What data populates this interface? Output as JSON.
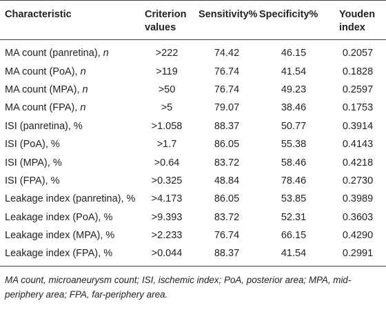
{
  "table": {
    "headers": [
      "Characteristic",
      "Criterion values",
      "Sensitivity%",
      "Specificity%",
      "Youden index"
    ],
    "rows": [
      {
        "label": "MA count (panretina), ",
        "label_italic": "n",
        "criterion": ">222",
        "sensitivity": "74.42",
        "specificity": "46.15",
        "youden": "0.2057"
      },
      {
        "label": "MA count (PoA), ",
        "label_italic": "n",
        "criterion": ">119",
        "sensitivity": "76.74",
        "specificity": "41.54",
        "youden": "0.1828"
      },
      {
        "label": "MA count (MPA), ",
        "label_italic": "n",
        "criterion": ">50",
        "sensitivity": "76.74",
        "specificity": "49.23",
        "youden": "0.2597"
      },
      {
        "label": "MA count (FPA), ",
        "label_italic": "n",
        "criterion": ">5",
        "sensitivity": "79.07",
        "specificity": "38.46",
        "youden": "0.1753"
      },
      {
        "label": "ISI (panretina), %",
        "label_italic": "",
        "criterion": ">1.058",
        "sensitivity": "88.37",
        "specificity": "50.77",
        "youden": "0.3914"
      },
      {
        "label": "ISI (PoA), %",
        "label_italic": "",
        "criterion": ">1.7",
        "sensitivity": "86.05",
        "specificity": "55.38",
        "youden": "0.4143"
      },
      {
        "label": "ISI (MPA), %",
        "label_italic": "",
        "criterion": ">0.64",
        "sensitivity": "83.72",
        "specificity": "58.46",
        "youden": "0.4218"
      },
      {
        "label": "ISI (FPA), %",
        "label_italic": "",
        "criterion": ">0.325",
        "sensitivity": "48.84",
        "specificity": "78.46",
        "youden": "0.2730"
      },
      {
        "label": "Leakage index (panretina), %",
        "label_italic": "",
        "criterion": ">4.173",
        "sensitivity": "86.05",
        "specificity": "53.85",
        "youden": "0.3989"
      },
      {
        "label": "Leakage index (PoA), %",
        "label_italic": "",
        "criterion": ">9.393",
        "sensitivity": "83.72",
        "specificity": "52.31",
        "youden": "0.3603"
      },
      {
        "label": "Leakage index (MPA), %",
        "label_italic": "",
        "criterion": ">2.233",
        "sensitivity": "76.74",
        "specificity": "66.15",
        "youden": "0.4290"
      },
      {
        "label": "Leakage index (FPA), %",
        "label_italic": "",
        "criterion": ">0.044",
        "sensitivity": "88.37",
        "specificity": "41.54",
        "youden": "0.2991"
      }
    ]
  },
  "footnote": "MA count, microaneurysm count; ISI, ischemic index; PoA, posterior area; MPA, mid-periphery area; FPA, far-periphery area."
}
